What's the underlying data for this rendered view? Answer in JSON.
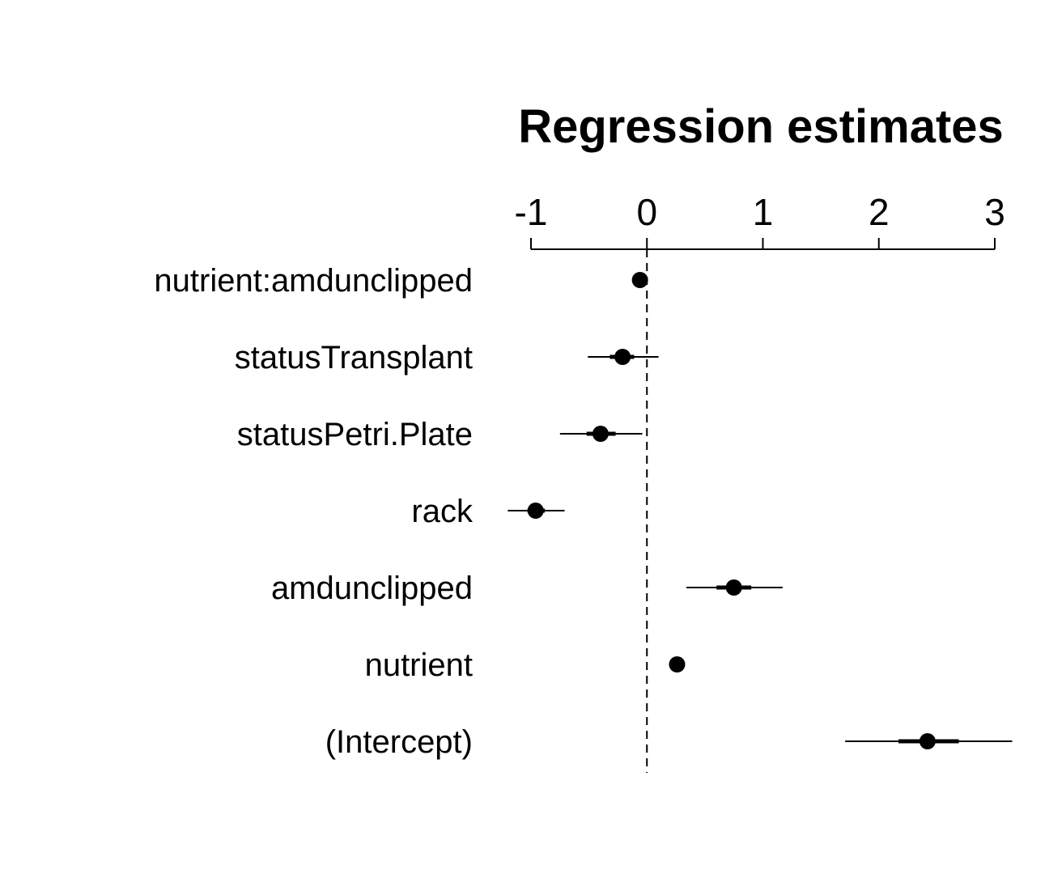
{
  "chart_data": {
    "type": "scatter",
    "title": "Regression estimates",
    "xlabel": "",
    "ylabel": "",
    "xlim": [
      -1,
      3
    ],
    "ticks": [
      -1,
      0,
      1,
      2,
      3
    ],
    "tick_labels": [
      "-1",
      "0",
      "1",
      "2",
      "3"
    ],
    "reference_line": 0,
    "grid": false,
    "terms": [
      {
        "label": "nutrient:amdunclipped",
        "estimate": -0.06,
        "ci50": [
          -0.09,
          -0.03
        ],
        "ci95": [
          -0.11,
          -0.01
        ]
      },
      {
        "label": "statusTransplant",
        "estimate": -0.21,
        "ci50": [
          -0.32,
          -0.11
        ],
        "ci95": [
          -0.51,
          0.1
        ]
      },
      {
        "label": "statusPetri.Plate",
        "estimate": -0.4,
        "ci50": [
          -0.52,
          -0.27
        ],
        "ci95": [
          -0.75,
          -0.04
        ]
      },
      {
        "label": "rack",
        "estimate": -0.96,
        "ci50": [
          -1.03,
          -0.88
        ],
        "ci95": [
          -1.2,
          -0.71
        ]
      },
      {
        "label": "amdunclipped",
        "estimate": 0.75,
        "ci50": [
          0.6,
          0.9
        ],
        "ci95": [
          0.34,
          1.17
        ]
      },
      {
        "label": "nutrient",
        "estimate": 0.26,
        "ci50": [
          0.23,
          0.29
        ],
        "ci95": [
          0.2,
          0.32
        ]
      },
      {
        "label": "(Intercept)",
        "estimate": 2.42,
        "ci50": [
          2.17,
          2.69
        ],
        "ci95": [
          1.71,
          3.15
        ]
      }
    ],
    "colors": {
      "points": "#000000",
      "axis": "#000000",
      "background": "#ffffff"
    }
  }
}
